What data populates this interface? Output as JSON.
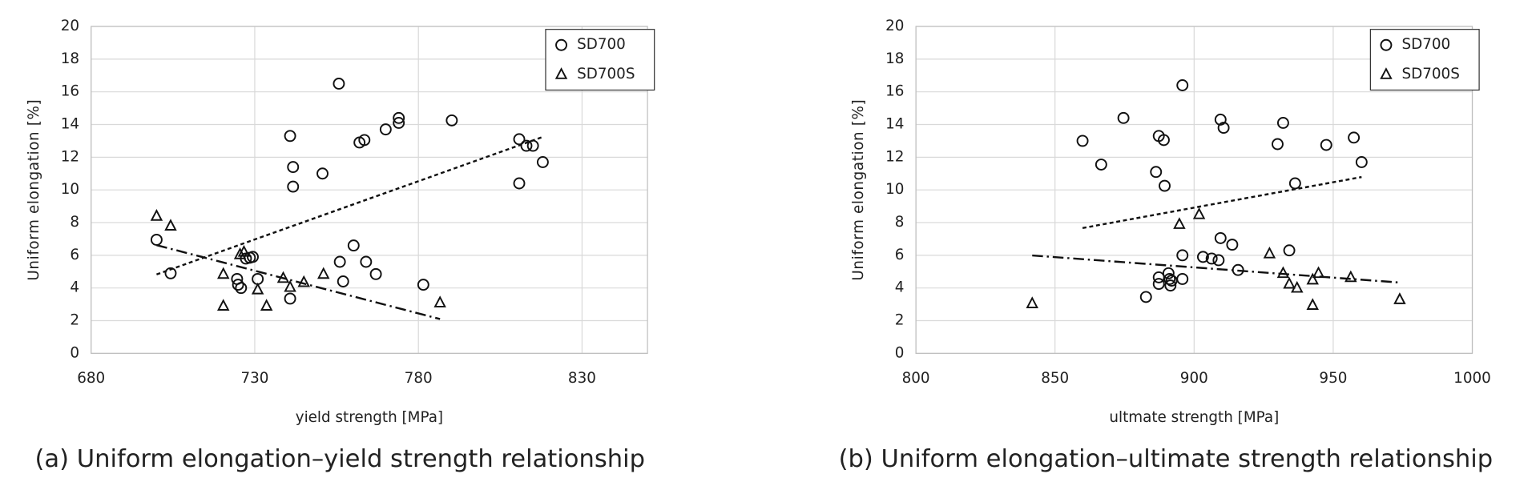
{
  "chart_data": [
    {
      "type": "scatter",
      "caption": "(a) Uniform elongation–yield strength relationship",
      "xlabel": "yield strength [MPa]",
      "ylabel": "Uniform elongation [%]",
      "xlim": [
        680,
        850
      ],
      "ylim": [
        0,
        20
      ],
      "xticks": [
        680,
        730,
        780,
        830
      ],
      "yticks": [
        0,
        2,
        4,
        6,
        8,
        10,
        12,
        14,
        16,
        18,
        20
      ],
      "grid": true,
      "legend": "upper right",
      "series": [
        {
          "name": "SD700",
          "marker": "circle",
          "color": "#111111",
          "trendline": "dashed",
          "x": [
            700,
            704.3,
            740.8,
            741.7,
            741.7,
            750.7,
            755.7,
            762,
            763.5,
            770,
            774,
            774,
            790.2,
            810.8,
            813,
            815,
            818,
            810.8,
            760.2,
            756,
            764,
            767,
            757,
            728.5,
            729.4,
            727.3,
            724.6,
            724.9,
            725.8,
            730.9,
            740.8,
            781.5
          ],
          "values": [
            6.95,
            4.9,
            13.3,
            11.4,
            10.2,
            11.0,
            16.5,
            12.9,
            13.05,
            13.7,
            14.4,
            14.1,
            14.25,
            13.1,
            12.7,
            12.7,
            11.7,
            10.4,
            6.6,
            5.6,
            5.6,
            4.85,
            4.4,
            5.85,
            5.9,
            5.8,
            4.55,
            4.2,
            4.0,
            4.55,
            3.35,
            4.2
          ]
        },
        {
          "name": "SD700S",
          "marker": "triangle",
          "color": "#111111",
          "trendline": "dashdot",
          "x": [
            700,
            704.3,
            720.4,
            720.4,
            725.5,
            726.7,
            730.9,
            733.6,
            738.7,
            740.8,
            745,
            751,
            786.6
          ],
          "values": [
            8.4,
            7.8,
            4.85,
            2.9,
            6.05,
            6.2,
            3.9,
            2.9,
            4.6,
            4.05,
            4.35,
            4.85,
            3.1
          ]
        }
      ]
    },
    {
      "type": "scatter",
      "caption": "(b) Uniform elongation–ultimate strength relationship",
      "xlabel": "ultmate strength [MPa]",
      "ylabel": "Uniform elongation [%]",
      "xlim": [
        800,
        1000
      ],
      "ylim": [
        0,
        20
      ],
      "xticks": [
        800,
        850,
        900,
        950,
        1000
      ],
      "yticks": [
        0,
        2,
        4,
        6,
        8,
        10,
        12,
        14,
        16,
        18,
        20
      ],
      "grid": true,
      "legend": "upper right",
      "series": [
        {
          "name": "SD700",
          "marker": "circle",
          "color": "#111111",
          "trendline": "dashed",
          "x": [
            859.9,
            866.6,
            874.6,
            887.3,
            889.1,
            886.3,
            889.4,
            895.8,
            909.5,
            910.6,
            932,
            930,
            947.5,
            957.4,
            960.2,
            936.3,
            909.5,
            913.7,
            934.2,
            895.8,
            903.2,
            906.3,
            908.8,
            915.8,
            890.8,
            891.2,
            887.3,
            887.3,
            891.5,
            895.8,
            882.7,
            891.9
          ],
          "values": [
            13.0,
            11.55,
            14.4,
            13.3,
            13.05,
            11.1,
            10.25,
            16.4,
            14.3,
            13.8,
            14.1,
            12.8,
            12.75,
            13.2,
            11.7,
            10.4,
            7.05,
            6.65,
            6.3,
            6.0,
            5.9,
            5.8,
            5.7,
            5.1,
            4.9,
            4.55,
            4.65,
            4.25,
            4.15,
            4.55,
            3.45,
            4.45
          ]
        },
        {
          "name": "SD700S",
          "marker": "triangle",
          "color": "#111111",
          "trendline": "dashdot",
          "x": [
            841.8,
            894.7,
            901.8,
            927.1,
            932,
            934.2,
            937,
            942.6,
            942.6,
            944.7,
            956.3,
            973.9
          ],
          "values": [
            3.05,
            7.9,
            8.5,
            6.1,
            4.9,
            4.25,
            4.0,
            2.95,
            4.5,
            4.9,
            4.65,
            3.3
          ]
        }
      ]
    }
  ]
}
